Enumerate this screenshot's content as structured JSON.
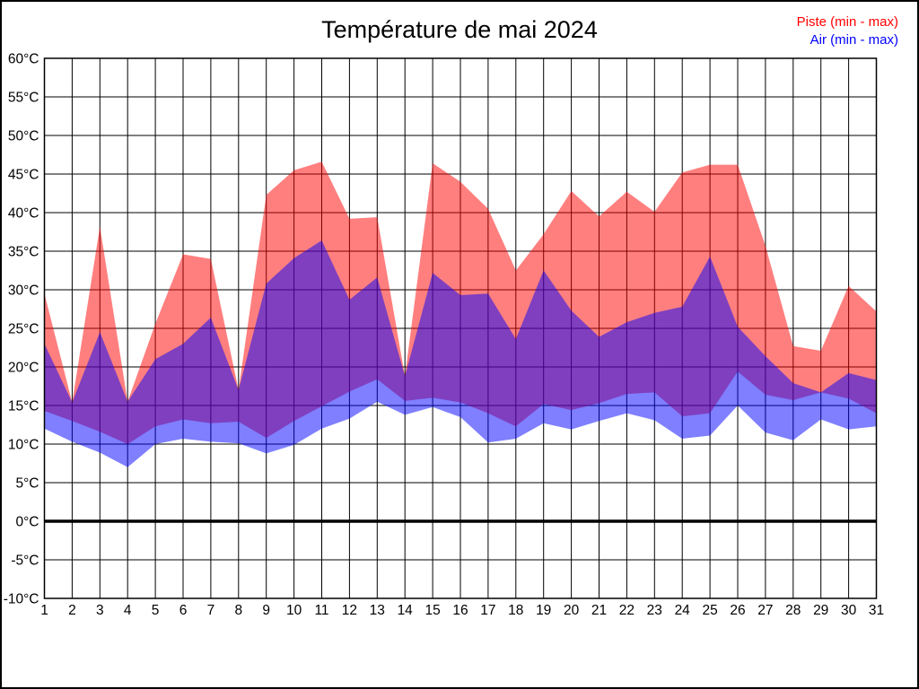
{
  "title": "Température de mai 2024",
  "legend": {
    "piste": {
      "label": "Piste (min - max)",
      "color": "#ff0000"
    },
    "air": {
      "label": "Air (min - max)",
      "color": "#0000ff"
    }
  },
  "colors": {
    "piste_fill": "rgba(255,0,0,0.5)",
    "air_fill": "rgba(0,0,255,0.5)",
    "grid": "#000000",
    "zero_line": "#000000",
    "background": "#ffffff"
  },
  "chart_data": {
    "type": "area",
    "title": "Température de mai 2024",
    "x": [
      1,
      2,
      3,
      4,
      5,
      6,
      7,
      8,
      9,
      10,
      11,
      12,
      13,
      14,
      15,
      16,
      17,
      18,
      19,
      20,
      21,
      22,
      23,
      24,
      25,
      26,
      27,
      28,
      29,
      30,
      31
    ],
    "x_tick_labels": [
      "1",
      "2",
      "3",
      "4",
      "5",
      "6",
      "7",
      "8",
      "9",
      "10",
      "11",
      "12",
      "13",
      "14",
      "15",
      "16",
      "17",
      "18",
      "19",
      "20",
      "21",
      "22",
      "23",
      "24",
      "25",
      "26",
      "27",
      "28",
      "29",
      "30",
      "31"
    ],
    "ylim": [
      -10,
      60
    ],
    "y_tick_values": [
      -10,
      -5,
      0,
      5,
      10,
      15,
      20,
      25,
      30,
      35,
      40,
      45,
      50,
      55,
      60
    ],
    "y_tick_labels": [
      "-10°C",
      "-5°C",
      "0°C",
      "5°C",
      "10°C",
      "15°C",
      "20°C",
      "25°C",
      "30°C",
      "35°C",
      "40°C",
      "45°C",
      "50°C",
      "55°C",
      "60°C"
    ],
    "grid": true,
    "zero_line": 0,
    "legend_position": "top-right",
    "series": [
      {
        "name": "Piste (min - max)",
        "role": "piste",
        "min": [
          14.3,
          13.0,
          11.6,
          10.0,
          12.3,
          13.2,
          12.7,
          12.9,
          10.8,
          13.0,
          14.9,
          16.8,
          18.4,
          15.6,
          16.0,
          15.4,
          14.0,
          12.3,
          15.2,
          14.4,
          15.3,
          16.5,
          16.7,
          13.6,
          14.0,
          19.4,
          16.4,
          15.7,
          16.7,
          15.9,
          14.0
        ],
        "max": [
          29.5,
          15.4,
          38.2,
          15.5,
          25.6,
          34.6,
          34.0,
          17.0,
          42.3,
          45.5,
          46.6,
          39.2,
          39.4,
          18.8,
          46.4,
          44.0,
          40.5,
          32.5,
          37.2,
          42.8,
          39.5,
          42.7,
          40.1,
          45.2,
          46.2,
          46.2,
          35.7,
          22.7,
          22.1,
          30.5,
          27.2
        ]
      },
      {
        "name": "Air (min - max)",
        "role": "air",
        "min": [
          12.0,
          10.3,
          8.9,
          7.0,
          10.0,
          10.7,
          10.3,
          10.1,
          8.8,
          9.9,
          12.0,
          13.3,
          15.5,
          13.8,
          14.8,
          13.5,
          10.2,
          10.7,
          12.7,
          11.9,
          13.0,
          14.0,
          13.1,
          10.7,
          11.1,
          15.0,
          11.5,
          10.5,
          13.2,
          11.9,
          12.3
        ],
        "max": [
          23.0,
          15.4,
          24.5,
          15.5,
          21.0,
          23.0,
          26.4,
          17.0,
          30.8,
          34.1,
          36.4,
          28.7,
          31.6,
          18.8,
          32.2,
          29.3,
          29.5,
          23.6,
          32.5,
          27.3,
          23.9,
          25.8,
          27.0,
          27.8,
          34.3,
          25.2,
          21.4,
          17.9,
          16.7,
          19.2,
          18.3
        ]
      }
    ]
  }
}
